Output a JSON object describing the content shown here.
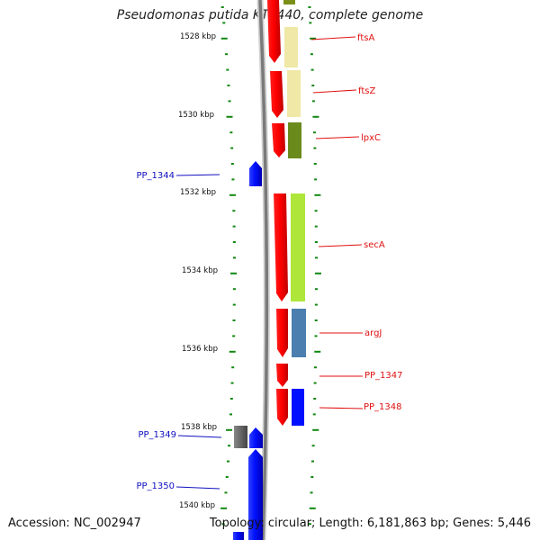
{
  "title": "Pseudomonas putida KT2440, complete genome",
  "accession": "Accession: NC_002947",
  "summary": "Topology: circular; Length: 6,181,863 bp; Genes: 5,446",
  "axis_labels": [
    "1528 kbp",
    "1530 kbp",
    "1532 kbp",
    "1534 kbp",
    "1536 kbp",
    "1538 kbp",
    "1540 kbp"
  ],
  "genes_right": [
    {
      "name": "ftsA",
      "color": "#e01010"
    },
    {
      "name": "ftsZ",
      "color": "#e01010"
    },
    {
      "name": "lpxC",
      "color": "#e01010"
    },
    {
      "name": "secA",
      "color": "#e01010"
    },
    {
      "name": "argJ",
      "color": "#e01010"
    },
    {
      "name": "PP_1347",
      "color": "#e01010"
    },
    {
      "name": "PP_1348",
      "color": "#e01010"
    }
  ],
  "genes_left": [
    {
      "name": "PP_1344",
      "color": "#1010c0"
    },
    {
      "name": "PP_1349",
      "color": "#1010c0"
    },
    {
      "name": "PP_1350",
      "color": "#1010c0"
    }
  ],
  "colors": {
    "forward_cds": "#ff0000",
    "reverse_cds": "#0000ff",
    "backbone": "#888888",
    "tick": "#118811"
  }
}
